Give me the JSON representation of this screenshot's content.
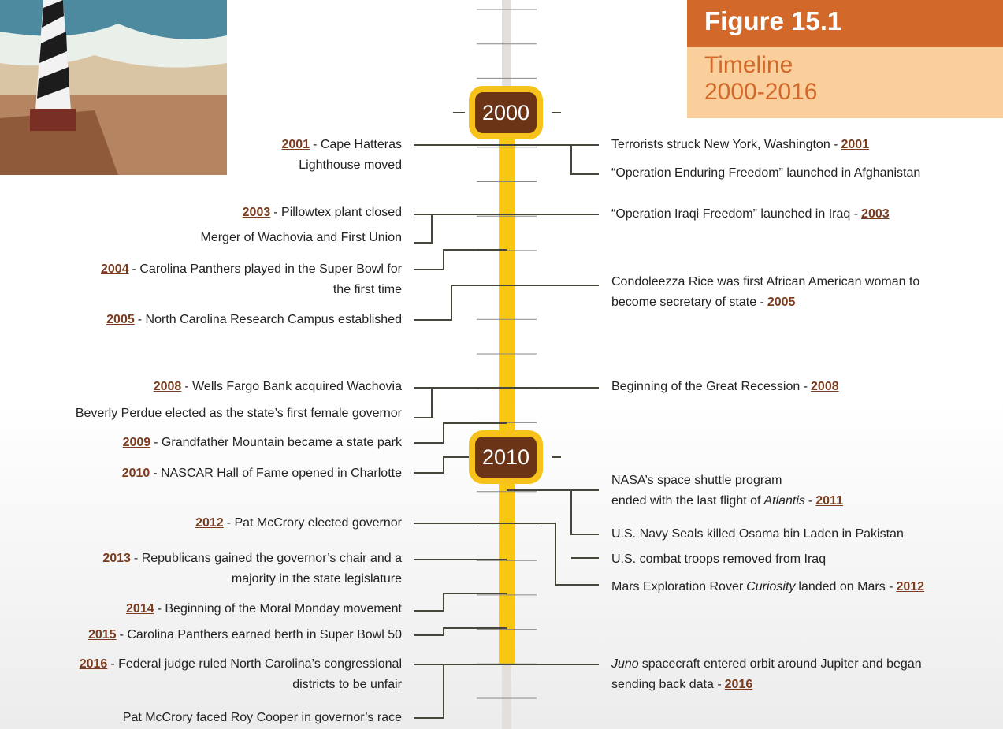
{
  "figure": {
    "label": "Figure 15.1",
    "title_lines": [
      "Timeline",
      "2000-2016"
    ]
  },
  "markers": [
    "2000",
    "2010"
  ],
  "left_events": [
    {
      "lines": [
        [
          {
            "year": "2001"
          },
          "- Cape Hatteras"
        ],
        [
          "Lighthouse moved"
        ]
      ]
    },
    {
      "lines": [
        [
          {
            "year": "2003"
          },
          "- Pillowtex plant closed"
        ]
      ]
    },
    {
      "lines": [
        [
          "Merger of Wachovia and First Union"
        ]
      ]
    },
    {
      "lines": [
        [
          {
            "year": "2004"
          },
          "- Carolina Panthers played in the Super Bowl for"
        ],
        [
          "the first time"
        ]
      ]
    },
    {
      "lines": [
        [
          {
            "year": "2005"
          },
          "- North Carolina Research Campus established"
        ]
      ]
    },
    {
      "lines": [
        [
          {
            "year": "2008"
          },
          "- Wells Fargo Bank acquired Wachovia"
        ]
      ]
    },
    {
      "lines": [
        [
          "Beverly Perdue elected as the state’s first female governor"
        ]
      ]
    },
    {
      "lines": [
        [
          {
            "year": "2009"
          },
          "- Grandfather Mountain became a state park"
        ]
      ]
    },
    {
      "lines": [
        [
          {
            "year": "2010"
          },
          "- NASCAR Hall of Fame opened in Charlotte"
        ]
      ]
    },
    {
      "lines": [
        [
          {
            "year": "2012"
          },
          "- Pat McCrory elected governor"
        ]
      ]
    },
    {
      "lines": [
        [
          {
            "year": "2013"
          },
          "- Republicans gained the governor’s chair and a"
        ],
        [
          "majority in the state legislature"
        ]
      ]
    },
    {
      "lines": [
        [
          {
            "year": "2014"
          },
          "- Beginning of the Moral Monday movement"
        ]
      ]
    },
    {
      "lines": [
        [
          {
            "year": "2015"
          },
          "- Carolina Panthers earned berth in Super Bowl 50"
        ]
      ]
    },
    {
      "lines": [
        [
          {
            "year": "2016"
          },
          "- Federal judge ruled North Carolina’s congressional"
        ],
        [
          "districts to be unfair"
        ]
      ]
    },
    {
      "lines": [
        [
          "Pat McCrory faced Roy Cooper in governor’s race"
        ]
      ]
    }
  ],
  "right_events": [
    {
      "lines": [
        [
          "Terrorists struck New York, Washington -",
          {
            "year": "2001"
          }
        ]
      ]
    },
    {
      "lines": [
        [
          "“Operation Enduring Freedom” launched in Afghanistan"
        ]
      ]
    },
    {
      "lines": [
        [
          "“Operation Iraqi Freedom” launched in Iraq -",
          {
            "year": "2003"
          }
        ]
      ]
    },
    {
      "lines": [
        [
          "Condoleezza Rice was first African American woman to"
        ],
        [
          "become secretary of state -",
          {
            "year": "2005"
          }
        ]
      ]
    },
    {
      "lines": [
        [
          "Beginning of the Great Recession -",
          {
            "year": "2008"
          }
        ]
      ]
    },
    {
      "lines": [
        [
          "NASA’s space shuttle program"
        ],
        [
          "ended with the last flight of",
          {
            "em": "Atlantis"
          },
          "-",
          {
            "year": "2011"
          }
        ]
      ]
    },
    {
      "lines": [
        [
          "U.S. Navy Seals killed Osama bin Laden in Pakistan"
        ]
      ]
    },
    {
      "lines": [
        [
          "U.S. combat troops removed from Iraq"
        ]
      ]
    },
    {
      "lines": [
        [
          "Mars Exploration Rover",
          {
            "em": "Curiosity"
          },
          "landed on Mars -",
          {
            "year": "2012"
          }
        ]
      ]
    },
    {
      "lines": [
        [
          {
            "em": "Juno"
          },
          "spacecraft entered orbit around Jupiter and began"
        ],
        [
          "sending back data -",
          {
            "year": "2016"
          }
        ]
      ]
    }
  ]
}
